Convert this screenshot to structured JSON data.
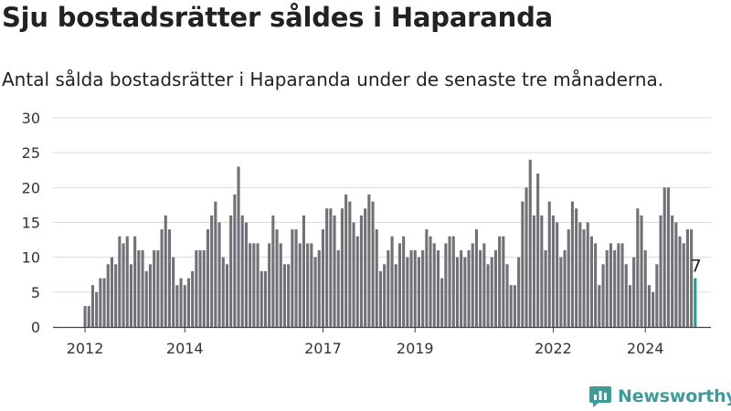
{
  "header": {
    "title": "Sju bostadsrätter såldes i Haparanda",
    "subtitle": "Antal sålda bostadsrätter i Haparanda under de senaste tre månaderna."
  },
  "brand": {
    "name": "Newsworthy",
    "color": "#3e9b98"
  },
  "colors": {
    "bar": "#717077",
    "highlight": "#1e9e94",
    "grid": "#d9d9d9",
    "axis": "#444444"
  },
  "chart_data": {
    "type": "bar",
    "ylim": [
      0,
      30
    ],
    "yticks": [
      0,
      5,
      10,
      15,
      20,
      25,
      30
    ],
    "xticks": [
      {
        "label": "2012",
        "index": 0
      },
      {
        "label": "2014",
        "index": 26
      },
      {
        "label": "2017",
        "index": 62
      },
      {
        "label": "2019",
        "index": 86
      },
      {
        "label": "2022",
        "index": 122
      },
      {
        "label": "2024",
        "index": 146
      }
    ],
    "highlight_label": "7",
    "values": [
      3,
      3,
      6,
      5,
      7,
      7,
      9,
      10,
      9,
      13,
      12,
      13,
      9,
      13,
      11,
      11,
      8,
      9,
      11,
      11,
      14,
      16,
      14,
      10,
      6,
      7,
      6,
      7,
      8,
      11,
      11,
      11,
      14,
      16,
      18,
      15,
      10,
      9,
      16,
      19,
      23,
      16,
      15,
      12,
      12,
      12,
      8,
      8,
      12,
      16,
      14,
      12,
      9,
      9,
      14,
      14,
      12,
      16,
      12,
      12,
      10,
      11,
      14,
      17,
      17,
      16,
      11,
      17,
      19,
      18,
      15,
      13,
      16,
      17,
      19,
      18,
      14,
      8,
      9,
      11,
      13,
      9,
      12,
      13,
      10,
      11,
      11,
      10,
      11,
      14,
      13,
      12,
      11,
      7,
      12,
      13,
      13,
      10,
      11,
      10,
      11,
      12,
      14,
      11,
      12,
      9,
      10,
      11,
      13,
      13,
      9,
      6,
      6,
      10,
      18,
      20,
      24,
      16,
      22,
      16,
      11,
      18,
      16,
      15,
      10,
      11,
      14,
      18,
      17,
      15,
      14,
      15,
      13,
      12,
      6,
      9,
      11,
      12,
      11,
      12,
      12,
      9,
      6,
      10,
      17,
      16,
      11,
      6,
      5,
      9,
      16,
      20,
      20,
      16,
      15,
      13,
      12,
      14,
      14,
      7
    ]
  }
}
